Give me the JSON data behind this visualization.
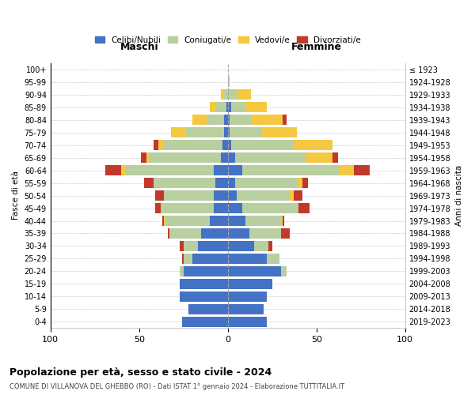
{
  "age_groups": [
    "0-4",
    "5-9",
    "10-14",
    "15-19",
    "20-24",
    "25-29",
    "30-34",
    "35-39",
    "40-44",
    "45-49",
    "50-54",
    "55-59",
    "60-64",
    "65-69",
    "70-74",
    "75-79",
    "80-84",
    "85-89",
    "90-94",
    "95-99",
    "100+"
  ],
  "birth_years": [
    "2019-2023",
    "2014-2018",
    "2009-2013",
    "2004-2008",
    "1999-2003",
    "1994-1998",
    "1989-1993",
    "1984-1988",
    "1979-1983",
    "1974-1978",
    "1969-1973",
    "1964-1968",
    "1959-1963",
    "1954-1958",
    "1949-1953",
    "1944-1948",
    "1939-1943",
    "1934-1938",
    "1929-1933",
    "1924-1928",
    "≤ 1923"
  ],
  "colors": {
    "single": "#4472c4",
    "married": "#b8cfa0",
    "widowed": "#f5c842",
    "divorced": "#c0392b"
  },
  "male": {
    "single": [
      26,
      22,
      27,
      27,
      25,
      20,
      17,
      15,
      10,
      8,
      8,
      7,
      8,
      4,
      3,
      2,
      2,
      1,
      0,
      0,
      0
    ],
    "married": [
      0,
      0,
      0,
      0,
      2,
      5,
      8,
      18,
      25,
      30,
      28,
      35,
      50,
      40,
      33,
      22,
      10,
      6,
      2,
      0,
      0
    ],
    "widowed": [
      0,
      0,
      0,
      0,
      0,
      0,
      0,
      0,
      1,
      0,
      0,
      0,
      2,
      2,
      3,
      8,
      8,
      3,
      2,
      0,
      0
    ],
    "divorced": [
      0,
      0,
      0,
      0,
      0,
      1,
      2,
      1,
      1,
      3,
      5,
      5,
      9,
      3,
      3,
      0,
      0,
      0,
      0,
      0,
      0
    ]
  },
  "female": {
    "single": [
      22,
      20,
      22,
      25,
      30,
      22,
      15,
      12,
      10,
      8,
      5,
      4,
      8,
      4,
      2,
      1,
      1,
      2,
      0,
      0,
      0
    ],
    "married": [
      0,
      0,
      0,
      0,
      3,
      7,
      8,
      18,
      20,
      32,
      30,
      35,
      55,
      40,
      35,
      18,
      12,
      8,
      5,
      1,
      0
    ],
    "widowed": [
      0,
      0,
      0,
      0,
      0,
      0,
      0,
      0,
      1,
      0,
      2,
      3,
      8,
      15,
      22,
      20,
      18,
      12,
      8,
      0,
      0
    ],
    "divorced": [
      0,
      0,
      0,
      0,
      0,
      0,
      2,
      5,
      1,
      6,
      5,
      3,
      9,
      3,
      0,
      0,
      2,
      0,
      0,
      0,
      0
    ]
  },
  "xlim": 100,
  "title": "Popolazione per età, sesso e stato civile - 2024",
  "subtitle": "COMUNE DI VILLANOVA DEL GHEBBO (RO) - Dati ISTAT 1° gennaio 2024 - Elaborazione TUTTITALIA.IT",
  "ylabel_left": "Fasce di età",
  "ylabel_right": "Anni di nascita",
  "xlabel_male": "Maschi",
  "xlabel_female": "Femmine",
  "legend_labels": [
    "Celibi/Nubili",
    "Coniugati/e",
    "Vedovi/e",
    "Divorziati/e"
  ],
  "background_color": "#ffffff",
  "grid_color": "#cccccc"
}
